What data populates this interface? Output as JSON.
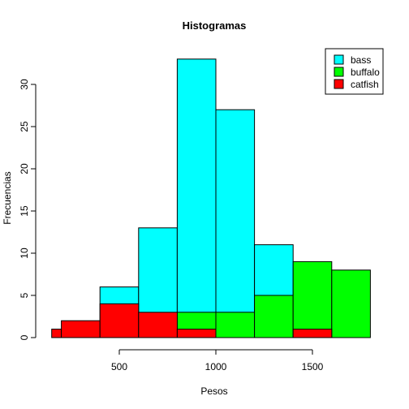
{
  "chart_data": {
    "type": "bar",
    "title": "Histogramas",
    "xlabel": "Pesos",
    "ylabel": "Frecuencias",
    "xlim": [
      150,
      1800
    ],
    "ylim": [
      0,
      33
    ],
    "xticks": [
      500,
      1000,
      1500
    ],
    "yticks": [
      0,
      5,
      10,
      15,
      20,
      25,
      30
    ],
    "grid": false,
    "legend_position": "top-right",
    "series": [
      {
        "name": "bass",
        "color": "#00FFFF",
        "bins": [
          {
            "x0": 400,
            "x1": 600,
            "count": 6
          },
          {
            "x0": 600,
            "x1": 800,
            "count": 13
          },
          {
            "x0": 800,
            "x1": 1000,
            "count": 33
          },
          {
            "x0": 1000,
            "x1": 1200,
            "count": 27
          },
          {
            "x0": 1200,
            "x1": 1400,
            "count": 11
          }
        ]
      },
      {
        "name": "buffalo",
        "color": "#00FF00",
        "bins": [
          {
            "x0": 800,
            "x1": 1000,
            "count": 3
          },
          {
            "x0": 1000,
            "x1": 1200,
            "count": 3
          },
          {
            "x0": 1200,
            "x1": 1400,
            "count": 5
          },
          {
            "x0": 1400,
            "x1": 1600,
            "count": 9
          },
          {
            "x0": 1600,
            "x1": 1800,
            "count": 8
          }
        ]
      },
      {
        "name": "catfish",
        "color": "#FF0000",
        "bins": [
          {
            "x0": 150,
            "x1": 200,
            "count": 1
          },
          {
            "x0": 200,
            "x1": 400,
            "count": 2
          },
          {
            "x0": 400,
            "x1": 600,
            "count": 4
          },
          {
            "x0": 600,
            "x1": 800,
            "count": 3
          },
          {
            "x0": 800,
            "x1": 1000,
            "count": 1
          },
          {
            "x0": 1400,
            "x1": 1600,
            "count": 1
          }
        ]
      }
    ]
  }
}
